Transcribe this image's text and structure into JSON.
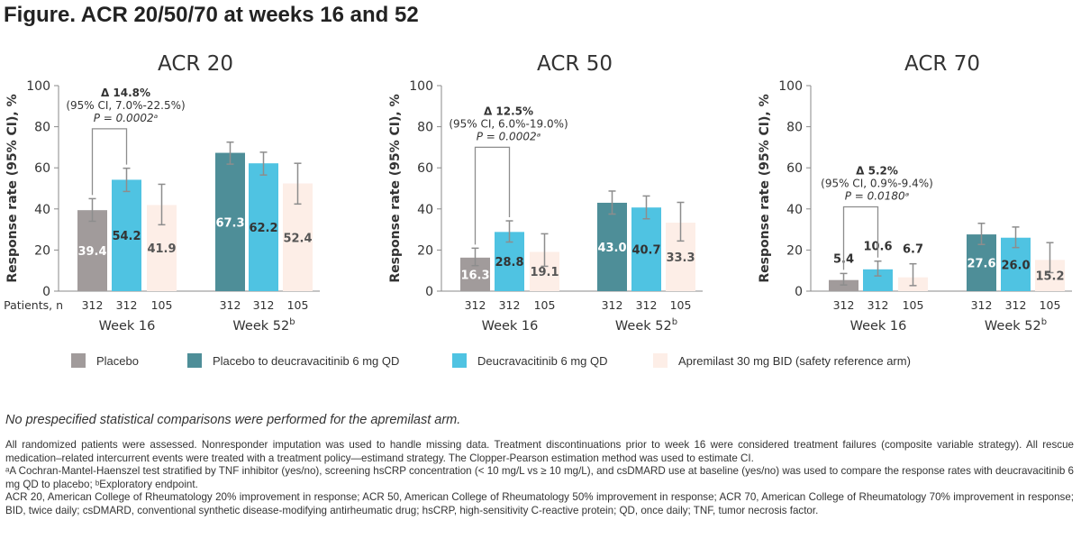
{
  "figure_title": "Figure. ACR 20/50/70 at weeks 16 and 52",
  "patients_label": "Patients, n",
  "legend": [
    {
      "label": "Placebo",
      "color": "#a19b9b"
    },
    {
      "label": "Placebo to deucravacitinib 6 mg QD",
      "color": "#4e8e98"
    },
    {
      "label": "Deucravacitinib 6 mg QD",
      "color": "#4fc3e2"
    },
    {
      "label": "Apremilast 30 mg BID (safety reference arm)",
      "color": "#fdeee7"
    }
  ],
  "note": "No prespecified statistical comparisons were performed for the apremilast arm.",
  "footnotes": [
    "All randomized patients were assessed. Nonresponder imputation was used to handle missing data. Treatment discontinuations prior to week 16 were considered treatment failures (composite variable strategy). All rescue medication–related intercurrent events were treated with a treatment policy—estimand strategy. The Clopper-Pearson estimation method was used to estimate CI.",
    "ᵃA Cochran-Mantel-Haenszel test stratified by TNF inhibitor (yes/no), screening hsCRP concentration (< 10 mg/L vs ≥ 10 mg/L), and csDMARD use at baseline (yes/no) was used to compare the response rates with deucravacitinib 6 mg QD to placebo; ᵇExploratory endpoint.",
    "ACR 20, American College of Rheumatology 20% improvement in response; ACR 50, American College of Rheumatology 50% improvement in response; ACR 70, American College of Rheumatology 70% improvement in response; BID, twice daily; csDMARD, conventional synthetic disease-modifying antirheumatic drug; hsCRP, high-sensitivity C-reactive protein; QD, once daily; TNF, tumor necrosis factor."
  ],
  "chart_data": [
    {
      "type": "bar",
      "title": "ACR 20",
      "ylabel": "Response rate (95% CI), %",
      "ylim": [
        0,
        100
      ],
      "yticks": [
        0,
        20,
        40,
        60,
        80,
        100
      ],
      "groups": [
        {
          "label": "Week 16",
          "superscript": "",
          "bars": [
            {
              "series": 0,
              "value": 39.4,
              "label": "39.4",
              "ci": [
                34.0,
                45.0
              ],
              "n": "312"
            },
            {
              "series": 2,
              "value": 54.2,
              "label": "54.2",
              "ci": [
                48.5,
                59.8
              ],
              "n": "312"
            },
            {
              "series": 3,
              "value": 41.9,
              "label": "41.9",
              "ci": [
                32.3,
                52.0
              ],
              "n": "105"
            }
          ]
        },
        {
          "label": "Week 52",
          "superscript": "b",
          "bars": [
            {
              "series": 1,
              "value": 67.3,
              "label": "67.3",
              "ci": [
                61.8,
                72.5
              ],
              "n": "312"
            },
            {
              "series": 2,
              "value": 62.2,
              "label": "62.2",
              "ci": [
                56.5,
                67.6
              ],
              "n": "312"
            },
            {
              "series": 3,
              "value": 52.4,
              "label": "52.4",
              "ci": [
                42.4,
                62.2
              ],
              "n": "105"
            }
          ]
        }
      ],
      "annotation": {
        "lines": [
          "Δ 14.8%",
          "(95% CI, 7.0%-22.5%)",
          "P = 0.0002ᵃ"
        ],
        "from_bar": 0,
        "to_bar": 1,
        "bracket_y": 79
      }
    },
    {
      "type": "bar",
      "title": "ACR 50",
      "ylabel": "Response rate (95% CI), %",
      "ylim": [
        0,
        100
      ],
      "yticks": [
        0,
        20,
        40,
        60,
        80,
        100
      ],
      "groups": [
        {
          "label": "Week 16",
          "superscript": "",
          "bars": [
            {
              "series": 0,
              "value": 16.3,
              "label": "16.3",
              "ci": [
                12.4,
                20.9
              ],
              "n": "312"
            },
            {
              "series": 2,
              "value": 28.8,
              "label": "28.8",
              "ci": [
                23.9,
                34.2
              ],
              "n": "312"
            },
            {
              "series": 3,
              "value": 19.1,
              "label": "19.1",
              "ci": [
                12.1,
                27.9
              ],
              "n": "105"
            }
          ]
        },
        {
          "label": "Week 52",
          "superscript": "b",
          "bars": [
            {
              "series": 1,
              "value": 43.0,
              "label": "43.0",
              "ci": [
                37.5,
                48.7
              ],
              "n": "312"
            },
            {
              "series": 2,
              "value": 40.7,
              "label": "40.7",
              "ci": [
                35.2,
                46.3
              ],
              "n": "312"
            },
            {
              "series": 3,
              "value": 33.3,
              "label": "33.3",
              "ci": [
                24.4,
                43.2
              ],
              "n": "105"
            }
          ]
        }
      ],
      "annotation": {
        "lines": [
          "Δ 12.5%",
          "(95% CI, 6.0%-19.0%)",
          "P = 0.0002ᵃ"
        ],
        "from_bar": 0,
        "to_bar": 1,
        "bracket_y": 70
      }
    },
    {
      "type": "bar",
      "title": "ACR 70",
      "ylabel": "Response rate (95% CI), %",
      "ylim": [
        0,
        100
      ],
      "yticks": [
        0,
        20,
        40,
        60,
        80,
        100
      ],
      "groups": [
        {
          "label": "Week 16",
          "superscript": "",
          "bars": [
            {
              "series": 0,
              "value": 5.4,
              "label": "5.4",
              "ci": [
                3.0,
                8.6
              ],
              "n": "312"
            },
            {
              "series": 2,
              "value": 10.6,
              "label": "10.6",
              "ci": [
                7.4,
                14.6
              ],
              "n": "312"
            },
            {
              "series": 3,
              "value": 6.7,
              "label": "6.7",
              "ci": [
                2.7,
                13.3
              ],
              "n": "105"
            }
          ]
        },
        {
          "label": "Week 52",
          "superscript": "b",
          "bars": [
            {
              "series": 1,
              "value": 27.6,
              "label": "27.6",
              "ci": [
                22.7,
                33.0
              ],
              "n": "312"
            },
            {
              "series": 2,
              "value": 26.0,
              "label": "26.0",
              "ci": [
                21.2,
                31.2
              ],
              "n": "312"
            },
            {
              "series": 3,
              "value": 15.2,
              "label": "15.2",
              "ci": [
                9.0,
                23.6
              ],
              "n": "105"
            }
          ]
        }
      ],
      "annotation": {
        "lines": [
          "Δ 5.2%",
          "(95% CI, 0.9%-9.4%)",
          "P = 0.0180ᵃ"
        ],
        "from_bar": 0,
        "to_bar": 1,
        "bracket_y": 41
      }
    }
  ]
}
